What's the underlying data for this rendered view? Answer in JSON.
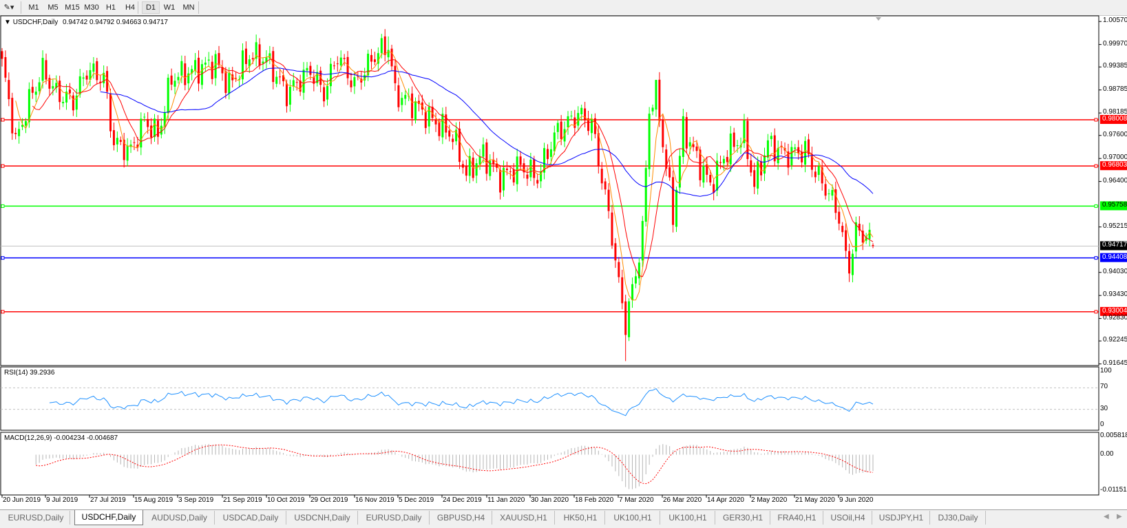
{
  "toolbar": {
    "timeframes": [
      "M1",
      "M5",
      "M15",
      "M30",
      "H1",
      "H4",
      "D1",
      "W1",
      "MN"
    ],
    "active_timeframe": "D1"
  },
  "header": {
    "title": "USDCHF,Daily",
    "ohlc": "0.94742 0.94792 0.94663 0.94717"
  },
  "indicators": {
    "rsi_label": "RSI(14) 39.2936",
    "macd_label": "MACD(12,26,9) -0.004234 -0.004687"
  },
  "tabs": [
    "EURUSD,Daily",
    "USDCHF,Daily",
    "AUDUSD,Daily",
    "USDCAD,Daily",
    "USDCNH,Daily",
    "EURUSD,Daily",
    "GBPUSD,H4",
    "XAUUSD,H1",
    "HK50,H1",
    "UK100,H1",
    "UK100,H1",
    "GER30,H1",
    "FRA40,H1",
    "USOil,H4",
    "USDJPY,H1",
    "DJ30,Daily"
  ],
  "active_tab": 1,
  "chart_data": {
    "type": "candlestick",
    "symbol": "USDCHF",
    "timeframe": "Daily",
    "last": {
      "open": 0.94742,
      "high": 0.94792,
      "low": 0.94663,
      "close": 0.94717
    },
    "ylim": [
      0.91645,
      1.0057
    ],
    "price_ticks": [
      "1.00570",
      "0.99970",
      "0.99385",
      "0.98785",
      "0.98185",
      "0.97600",
      "0.97000",
      "0.96400",
      "0.95215",
      "0.94030",
      "0.93430",
      "0.92830",
      "0.92245",
      "0.91645"
    ],
    "date_ticks": [
      "20 Jun 2019",
      "9 Jul 2019",
      "27 Jul 2019",
      "15 Aug 2019",
      "3 Sep 2019",
      "21 Sep 2019",
      "10 Oct 2019",
      "29 Oct 2019",
      "16 Nov 2019",
      "5 Dec 2019",
      "24 Dec 2019",
      "11 Jan 2020",
      "30 Jan 2020",
      "18 Feb 2020",
      "7 Mar 2020",
      "26 Mar 2020",
      "14 Apr 2020",
      "2 May 2020",
      "21 May 2020",
      "9 Jun 2020"
    ],
    "bar_count": 258,
    "close_keypoints": [
      [
        0,
        0.9947
      ],
      [
        3,
        0.98
      ],
      [
        4,
        0.974
      ],
      [
        8,
        0.985
      ],
      [
        12,
        0.993
      ],
      [
        16,
        0.987
      ],
      [
        21,
        0.985
      ],
      [
        25,
        0.993
      ],
      [
        30,
        0.991
      ],
      [
        33,
        0.974
      ],
      [
        38,
        0.972
      ],
      [
        42,
        0.98
      ],
      [
        46,
        0.976
      ],
      [
        50,
        0.991
      ],
      [
        57,
        0.993
      ],
      [
        63,
        0.995
      ],
      [
        67,
        0.989
      ],
      [
        73,
        0.997
      ],
      [
        78,
        0.996
      ],
      [
        84,
        0.987
      ],
      [
        91,
        0.993
      ],
      [
        95,
        0.987
      ],
      [
        99,
        0.997
      ],
      [
        104,
        0.989
      ],
      [
        110,
        0.997
      ],
      [
        114,
        0.9995
      ],
      [
        116,
        0.987
      ],
      [
        123,
        0.983
      ],
      [
        127,
        0.98
      ],
      [
        133,
        0.976
      ],
      [
        137,
        0.966
      ],
      [
        142,
        0.971
      ],
      [
        147,
        0.965
      ],
      [
        153,
        0.968
      ],
      [
        158,
        0.965
      ],
      [
        163,
        0.976
      ],
      [
        170,
        0.9816
      ],
      [
        174,
        0.979
      ],
      [
        177,
        0.965
      ],
      [
        180,
        0.95
      ],
      [
        182,
        0.937
      ],
      [
        184,
        0.927
      ],
      [
        187,
        0.94
      ],
      [
        189,
        0.951
      ],
      [
        191,
        0.983
      ],
      [
        193,
        0.987
      ],
      [
        196,
        0.968
      ],
      [
        198,
        0.955
      ],
      [
        201,
        0.978
      ],
      [
        205,
        0.97
      ],
      [
        209,
        0.963
      ],
      [
        214,
        0.972
      ],
      [
        219,
        0.976
      ],
      [
        222,
        0.963
      ],
      [
        226,
        0.974
      ],
      [
        231,
        0.971
      ],
      [
        237,
        0.972
      ],
      [
        241,
        0.965
      ],
      [
        244,
        0.961
      ],
      [
        247,
        0.955
      ],
      [
        249,
        0.944
      ],
      [
        250,
        0.942
      ],
      [
        252,
        0.951
      ],
      [
        255,
        0.95
      ],
      [
        257,
        0.94717
      ]
    ],
    "notable_extremes": {
      "lows": [
        [
          184,
          0.9172
        ],
        [
          250,
          0.9378
        ]
      ],
      "highs": [
        [
          114,
          1.0018
        ],
        [
          193,
          0.9905
        ]
      ]
    },
    "horizontal_lines": [
      {
        "price": "0.98008",
        "color": "#ff0000"
      },
      {
        "price": "0.96803",
        "color": "#ff0000"
      },
      {
        "price": "0.95758",
        "color": "#00ff00"
      },
      {
        "price": "0.94408",
        "color": "#0000ff"
      },
      {
        "price": "0.93004",
        "color": "#ff0000"
      }
    ],
    "current_price_label": "0.94717",
    "colors": {
      "bull": "#00ff00",
      "bear": "#ff0000",
      "ma_fast": "#ff8c00",
      "ma_mid": "#ff0000",
      "ma_slow": "#0000ff",
      "rsi": "#1e90ff",
      "macd_hist": "#b4b4b4",
      "macd_signal": "#ff0000"
    },
    "rsi": {
      "ticks": [
        "100",
        "70",
        "30",
        "0"
      ],
      "levels": [
        70,
        30
      ],
      "ylim": [
        0,
        100
      ]
    },
    "macd": {
      "ticks": [
        "0.005818",
        "0.00",
        "-0.011514"
      ],
      "ylim": [
        -0.011514,
        0.005818
      ]
    }
  }
}
